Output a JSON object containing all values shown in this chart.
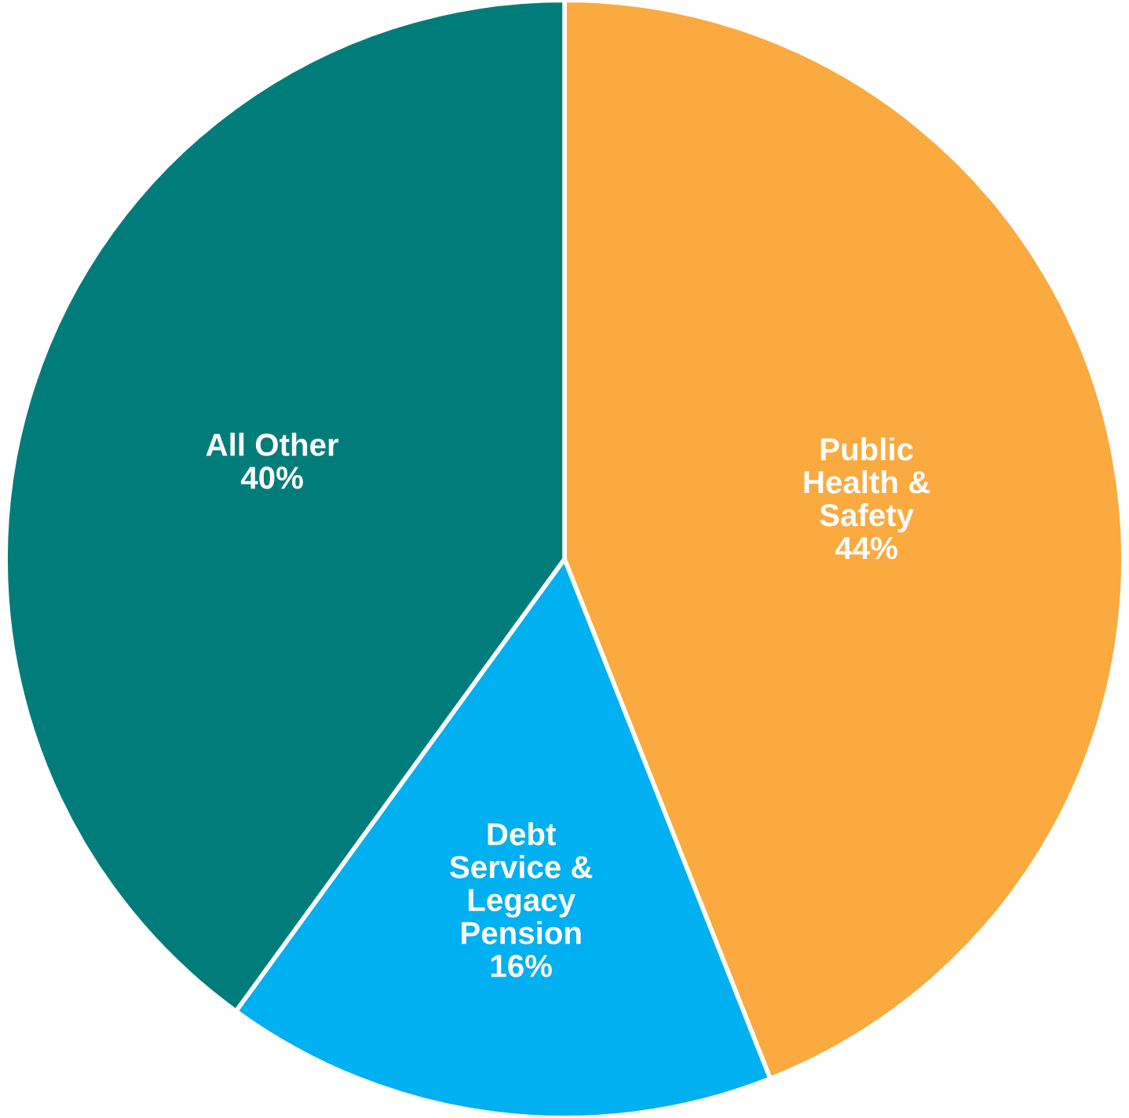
{
  "chart_data": {
    "type": "pie",
    "categories": [
      "Public\nHealth &\nSafety",
      "Debt\nService &\nLegacy\nPension",
      "All Other"
    ],
    "values": [
      44,
      16,
      40
    ],
    "colors": [
      "#fbaa3f",
      "#00b0f0",
      "#007d7a"
    ],
    "value_labels": [
      "44%",
      "16%",
      "40%"
    ]
  }
}
